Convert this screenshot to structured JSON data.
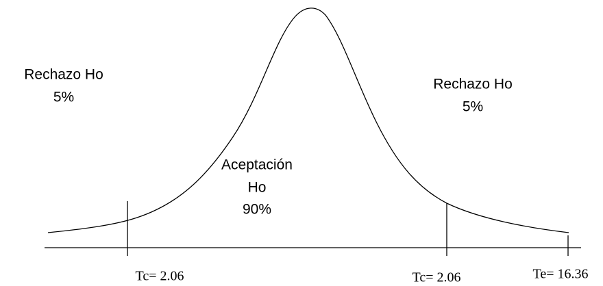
{
  "regions": [
    {
      "lines": [
        "Rechazo Ho",
        "5%"
      ]
    },
    {
      "lines": [
        "Aceptación",
        "Ho",
        "90%"
      ]
    },
    {
      "lines": [
        "Rechazo Ho",
        "5%"
      ]
    }
  ],
  "markers": [
    {
      "label": "Tc= 2.06"
    },
    {
      "label": "Tc= 2.06"
    },
    {
      "label": "Te= 16.36"
    }
  ]
}
